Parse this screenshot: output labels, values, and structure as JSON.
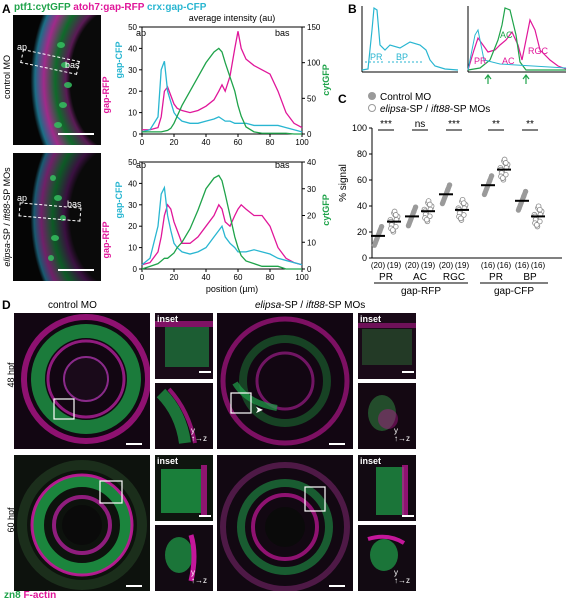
{
  "panel_letters": {
    "a": "A",
    "b": "B",
    "c": "C",
    "d": "D"
  },
  "panelA": {
    "header": {
      "ptf1": "ptf1:cytGFP",
      "atoh7": "atoh7:gap-RFP",
      "crx": "crx:gap-CFP"
    },
    "row1_label": "control MO",
    "row2_label_italic1": "elipsa",
    "row2_label_mid": "-SP / ",
    "row2_label_italic2": "ift88",
    "row2_label_end": "-SP MOs",
    "ap": "ap",
    "bas": "bas",
    "chart_title": "average intensity (au)",
    "left_axis_a": "gap-RFP",
    "left_axis_b": "gap-CFP",
    "right_axis": "cytGFP",
    "xlabel": "position (µm)"
  },
  "panelB": {
    "pr": "PR",
    "bp": "BP",
    "ac": "AC",
    "rgc": "RGC"
  },
  "panelC": {
    "legend": {
      "control": "Control MO",
      "mo_italic1": "elipsa",
      "mo_mid": "-SP / ",
      "mo_italic2": "ift88",
      "mo_end": "-SP MOs"
    },
    "ylabel": "% signal",
    "yticks": [
      "0",
      "20",
      "40",
      "60",
      "80",
      "100"
    ],
    "sig": [
      "***",
      "ns",
      "***",
      "**",
      "**"
    ],
    "cats": [
      "PR",
      "AC",
      "RGC",
      "PR",
      "BP"
    ],
    "ns": [
      "(20)",
      "(19)",
      "(20)",
      "(19)",
      "(20)",
      "(19)",
      "(16)",
      "(16)",
      "(16)",
      "(16)"
    ],
    "group1": "gap-RFP",
    "group2": "gap-CFP"
  },
  "panelD": {
    "col1": "control MO",
    "col2_italic1": "elipsa",
    "col2_mid": "-SP / ",
    "col2_italic2": "ift88",
    "col2_end": "-SP MOs",
    "row1": "48 hpf",
    "row2": "60 hpf",
    "inset": "inset",
    "axis_y": "y",
    "axis_z": "z",
    "legend_zn8": "zn8",
    "legend_factin": "F-actin"
  },
  "colors": {
    "green": "#1fa34a",
    "magenta": "#e0179a",
    "cyan": "#29b6d1",
    "gray": "#9a9a9a"
  },
  "chart_data": [
    {
      "type": "line",
      "title": "average intensity (au)",
      "xlabel": "position (µm)",
      "ylabel_left": "gap-RFP gap-CFP",
      "ylabel_right": "cytGFP",
      "xlim": [
        0,
        100
      ],
      "ylim_left": [
        0,
        50
      ],
      "ylim_right": [
        0,
        150
      ],
      "x": [
        0,
        5,
        10,
        12,
        14,
        16,
        18,
        20,
        22,
        25,
        30,
        35,
        40,
        45,
        48,
        50,
        52,
        55,
        58,
        60,
        62,
        65,
        70,
        75,
        80,
        85,
        90,
        95,
        100
      ],
      "series": [
        {
          "name": "gap-RFP",
          "values": [
            2,
            2,
            3,
            8,
            20,
            22,
            18,
            14,
            12,
            11,
            10,
            11,
            13,
            16,
            20,
            23,
            20,
            27,
            40,
            48,
            40,
            35,
            32,
            30,
            28,
            20,
            10,
            5,
            3
          ]
        },
        {
          "name": "gap-CFP",
          "values": [
            1,
            2,
            8,
            30,
            34,
            20,
            15,
            10,
            8,
            6,
            5,
            5,
            6,
            7,
            8,
            7,
            6,
            6,
            5,
            5,
            5,
            5,
            4,
            4,
            4,
            4,
            3,
            2,
            1
          ]
        },
        {
          "name": "cytGFP",
          "values": [
            3,
            3,
            3,
            3,
            4,
            5,
            8,
            15,
            25,
            40,
            60,
            80,
            100,
            115,
            120,
            115,
            100,
            80,
            60,
            40,
            25,
            10,
            3,
            1,
            1,
            1,
            1,
            0,
            0
          ]
        }
      ]
    },
    {
      "type": "line",
      "xlabel": "position (µm)",
      "xlim": [
        0,
        100
      ],
      "ylim_left": [
        0,
        50
      ],
      "ylim_right": [
        0,
        40
      ],
      "x": [
        0,
        5,
        10,
        12,
        14,
        16,
        18,
        20,
        22,
        25,
        30,
        35,
        40,
        45,
        48,
        50,
        52,
        55,
        58,
        60,
        62,
        65,
        70,
        75,
        80,
        85,
        90,
        95,
        100
      ],
      "series": [
        {
          "name": "gap-RFP",
          "values": [
            2,
            3,
            8,
            15,
            25,
            30,
            28,
            22,
            18,
            12,
            12,
            15,
            20,
            25,
            30,
            28,
            22,
            20,
            25,
            28,
            30,
            28,
            25,
            25,
            20,
            10,
            5,
            3,
            2
          ]
        },
        {
          "name": "gap-CFP",
          "values": [
            2,
            5,
            20,
            35,
            38,
            25,
            18,
            12,
            10,
            8,
            7,
            8,
            10,
            15,
            18,
            20,
            15,
            12,
            10,
            8,
            8,
            8,
            9,
            8,
            7,
            5,
            4,
            3,
            2
          ]
        },
        {
          "name": "cytGFP",
          "values": [
            0,
            1,
            2,
            3,
            4,
            4,
            5,
            6,
            8,
            10,
            15,
            22,
            30,
            34,
            35,
            33,
            28,
            20,
            12,
            8,
            5,
            3,
            2,
            1,
            1,
            1,
            0,
            0,
            0
          ]
        }
      ]
    },
    {
      "type": "scatter",
      "ylabel": "% signal",
      "ylim": [
        0,
        100
      ],
      "categories": [
        "PR",
        "AC",
        "RGC",
        "PR",
        "BP"
      ],
      "series": [
        {
          "name": "Control MO",
          "means": [
            17,
            32,
            49,
            56,
            44
          ]
        },
        {
          "name": "elipsa-SP / ift88-SP MOs",
          "means": [
            28,
            36,
            37,
            68,
            32
          ]
        }
      ]
    }
  ]
}
